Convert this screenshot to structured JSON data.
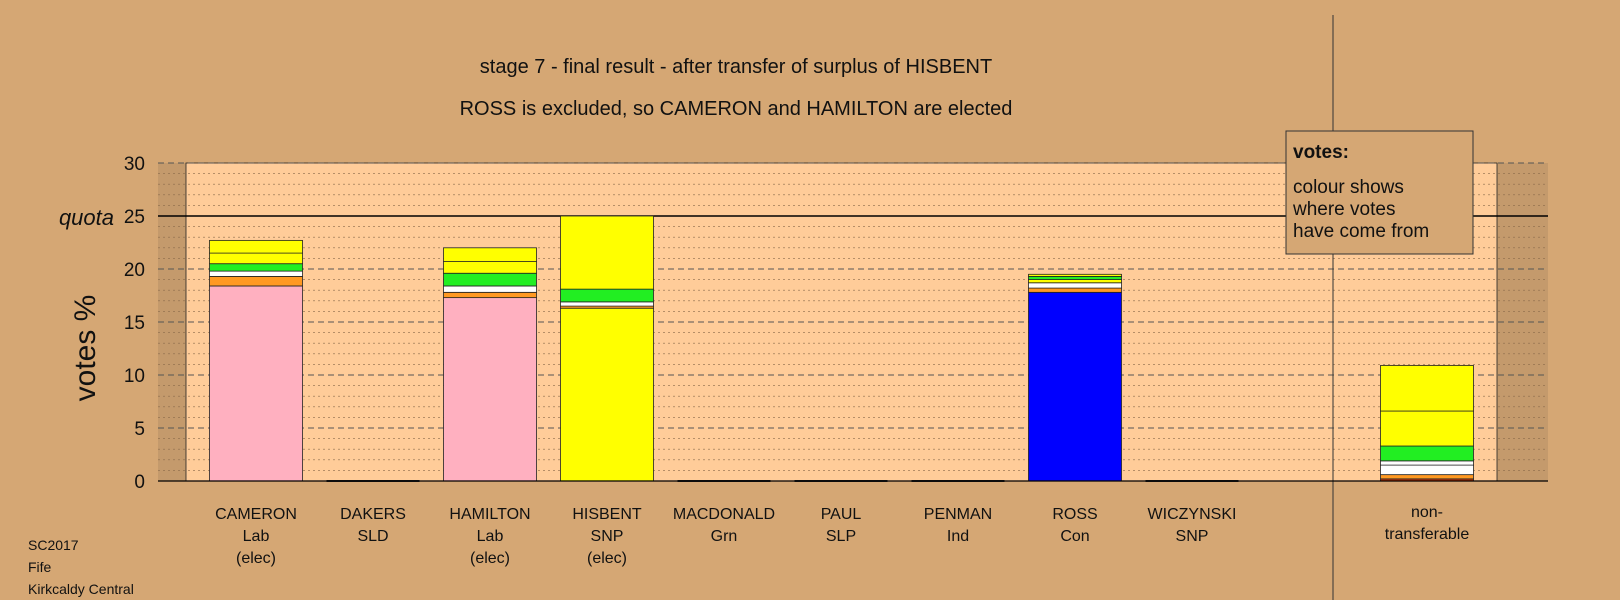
{
  "chart_data": {
    "type": "bar",
    "stacked": true,
    "title": "stage 7 - final result - after transfer of surplus of HISBENT",
    "subtitle": "ROSS is excluded, so CAMERON and HAMILTON are elected",
    "ylabel": "votes %",
    "ylim": [
      0,
      30
    ],
    "yticks": [
      0,
      5,
      10,
      15,
      20,
      25,
      30
    ],
    "quota": 25,
    "quota_label": "quota",
    "grid": true,
    "legend": {
      "position": "top-right",
      "heading": "votes:",
      "lines": [
        "colour shows",
        "where votes",
        "have come from"
      ]
    },
    "colors": {
      "Lab": "#ffb0c0",
      "SNP": "#ffff00",
      "Con": "#0000ff",
      "Grn": "#22ee22",
      "SLD": "#ff9922",
      "white": "#ffffff",
      "SLP": "#cc3300",
      "Ind": "#777777",
      "bg": "#d5a774",
      "plot": "#ffcc99"
    },
    "candidates": [
      {
        "name": "CAMERON",
        "party": "Lab",
        "status": "(elec)",
        "segments": [
          {
            "from": "Lab",
            "value": 18.4
          },
          {
            "from": "SLD",
            "value": 0.9
          },
          {
            "from": "white",
            "value": 0.5
          },
          {
            "from": "Grn",
            "value": 0.7
          },
          {
            "from": "SNP",
            "value": 1.0
          },
          {
            "from": "SNP",
            "value": 1.2
          }
        ]
      },
      {
        "name": "DAKERS",
        "party": "SLD",
        "status": "",
        "segments": []
      },
      {
        "name": "HAMILTON",
        "party": "Lab",
        "status": "(elec)",
        "segments": [
          {
            "from": "Lab",
            "value": 17.3
          },
          {
            "from": "SLD",
            "value": 0.5
          },
          {
            "from": "white",
            "value": 0.6
          },
          {
            "from": "Grn",
            "value": 1.2
          },
          {
            "from": "SNP",
            "value": 1.1
          },
          {
            "from": "SNP",
            "value": 1.3
          }
        ]
      },
      {
        "name": "HISBENT",
        "party": "SNP",
        "status": "(elec)",
        "segments": [
          {
            "from": "SNP",
            "value": 16.3
          },
          {
            "from": "SLD",
            "value": 0.2
          },
          {
            "from": "white",
            "value": 0.4
          },
          {
            "from": "Grn",
            "value": 1.2
          },
          {
            "from": "SNP",
            "value": 6.9
          }
        ]
      },
      {
        "name": "MACDONALD",
        "party": "Grn",
        "status": "",
        "segments": []
      },
      {
        "name": "PAUL",
        "party": "SLP",
        "status": "",
        "segments": []
      },
      {
        "name": "PENMAN",
        "party": "Ind",
        "status": "",
        "segments": []
      },
      {
        "name": "ROSS",
        "party": "Con",
        "status": "",
        "segments": [
          {
            "from": "Con",
            "value": 17.8
          },
          {
            "from": "SLD",
            "value": 0.4
          },
          {
            "from": "white",
            "value": 0.5
          },
          {
            "from": "SNP",
            "value": 0.3
          },
          {
            "from": "Grn",
            "value": 0.3
          },
          {
            "from": "SNP",
            "value": 0.2
          }
        ]
      },
      {
        "name": "WICZYNSKI",
        "party": "SNP",
        "status": "",
        "segments": []
      }
    ],
    "nontransferable": {
      "label1": "non-",
      "label2": "transferable",
      "segments": [
        {
          "from": "SLP",
          "value": 0.2
        },
        {
          "from": "SLD",
          "value": 0.4
        },
        {
          "from": "white",
          "value": 0.9
        },
        {
          "from": "white",
          "value": 0.4
        },
        {
          "from": "Grn",
          "value": 1.4
        },
        {
          "from": "SNP",
          "value": 3.3
        },
        {
          "from": "SNP",
          "value": 4.3
        }
      ]
    }
  },
  "footer": {
    "line1": "SC2017",
    "line2": "Fife",
    "line3": "Kirkcaldy Central"
  }
}
